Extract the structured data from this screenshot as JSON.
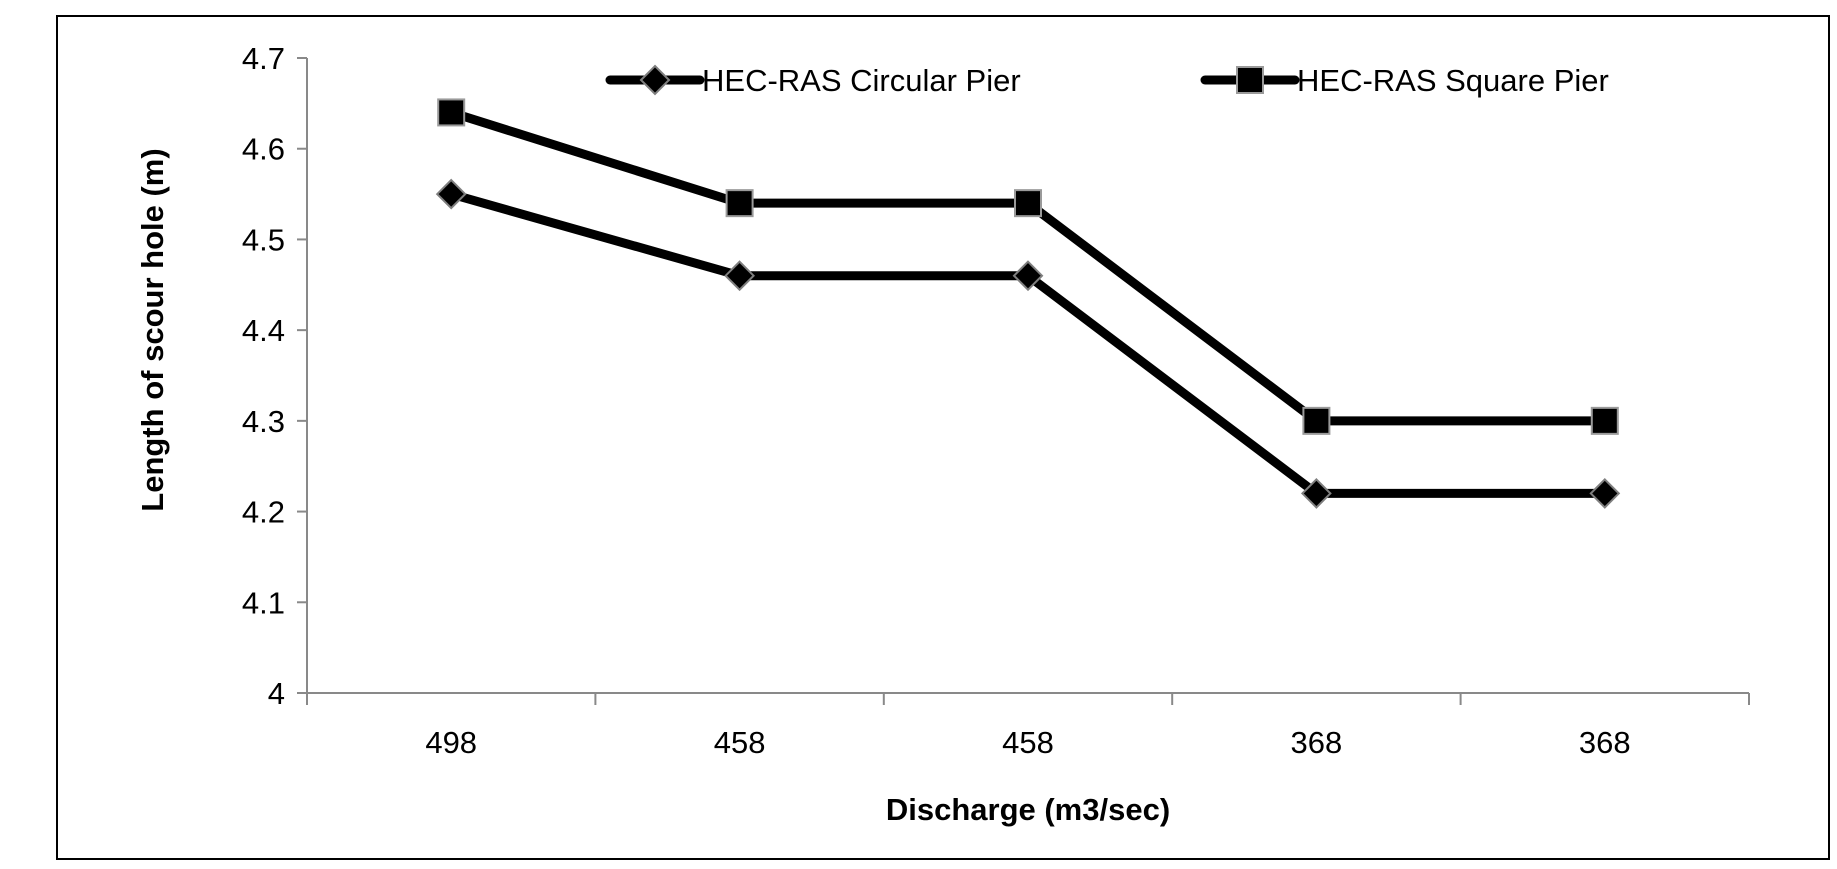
{
  "chart_data": {
    "type": "line",
    "categories": [
      "498",
      "458",
      "458",
      "368",
      "368"
    ],
    "series": [
      {
        "name": "HEC-RAS Circular Pier",
        "values": [
          4.55,
          4.46,
          4.46,
          4.22,
          4.22
        ],
        "marker": "diamond",
        "color": "#000000"
      },
      {
        "name": "HEC-RAS Square Pier",
        "values": [
          4.64,
          4.54,
          4.54,
          4.3,
          4.3
        ],
        "marker": "square",
        "color": "#000000"
      }
    ],
    "xlabel": "Discharge (m3/sec)",
    "ylabel": "Length of scour hole (m)",
    "ylim": [
      4,
      4.7
    ],
    "yticks": [
      "4",
      "4.1",
      "4.2",
      "4.3",
      "4.4",
      "4.5",
      "4.6",
      "4.7"
    ],
    "grid": false,
    "legend_position": "top"
  }
}
